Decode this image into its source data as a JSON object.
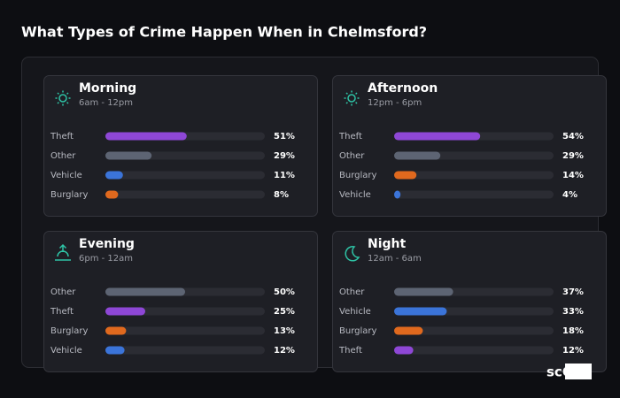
{
  "title": "What Types of Crime Happen When in Chelmsford?",
  "watermark": "scOS",
  "chart_data": [
    {
      "type": "bar",
      "orientation": "horizontal",
      "title": "Morning",
      "subtitle": "6am - 12pm",
      "categories": [
        "Theft",
        "Other",
        "Vehicle",
        "Burglary"
      ],
      "values": [
        51,
        29,
        11,
        8
      ],
      "value_labels": [
        "51%",
        "29%",
        "11%",
        "8%"
      ],
      "colors": [
        "#8e47d6",
        "#5d6473",
        "#3b74d9",
        "#e0691e"
      ],
      "xlim": [
        0,
        100
      ]
    },
    {
      "type": "bar",
      "orientation": "horizontal",
      "title": "Afternoon",
      "subtitle": "12pm - 6pm",
      "categories": [
        "Theft",
        "Other",
        "Burglary",
        "Vehicle"
      ],
      "values": [
        54,
        29,
        14,
        4
      ],
      "value_labels": [
        "54%",
        "29%",
        "14%",
        "4%"
      ],
      "colors": [
        "#8e47d6",
        "#5d6473",
        "#e0691e",
        "#3b74d9"
      ],
      "xlim": [
        0,
        100
      ]
    },
    {
      "type": "bar",
      "orientation": "horizontal",
      "title": "Evening",
      "subtitle": "6pm - 12am",
      "categories": [
        "Other",
        "Theft",
        "Burglary",
        "Vehicle"
      ],
      "values": [
        50,
        25,
        13,
        12
      ],
      "value_labels": [
        "50%",
        "25%",
        "13%",
        "12%"
      ],
      "colors": [
        "#5d6473",
        "#8e47d6",
        "#e0691e",
        "#3b74d9"
      ],
      "xlim": [
        0,
        100
      ]
    },
    {
      "type": "bar",
      "orientation": "horizontal",
      "title": "Night",
      "subtitle": "12am - 6am",
      "categories": [
        "Other",
        "Vehicle",
        "Burglary",
        "Theft"
      ],
      "values": [
        37,
        33,
        18,
        12
      ],
      "value_labels": [
        "37%",
        "33%",
        "18%",
        "12%"
      ],
      "colors": [
        "#5d6473",
        "#3b74d9",
        "#e0691e",
        "#8e47d6"
      ],
      "xlim": [
        0,
        100
      ]
    }
  ]
}
